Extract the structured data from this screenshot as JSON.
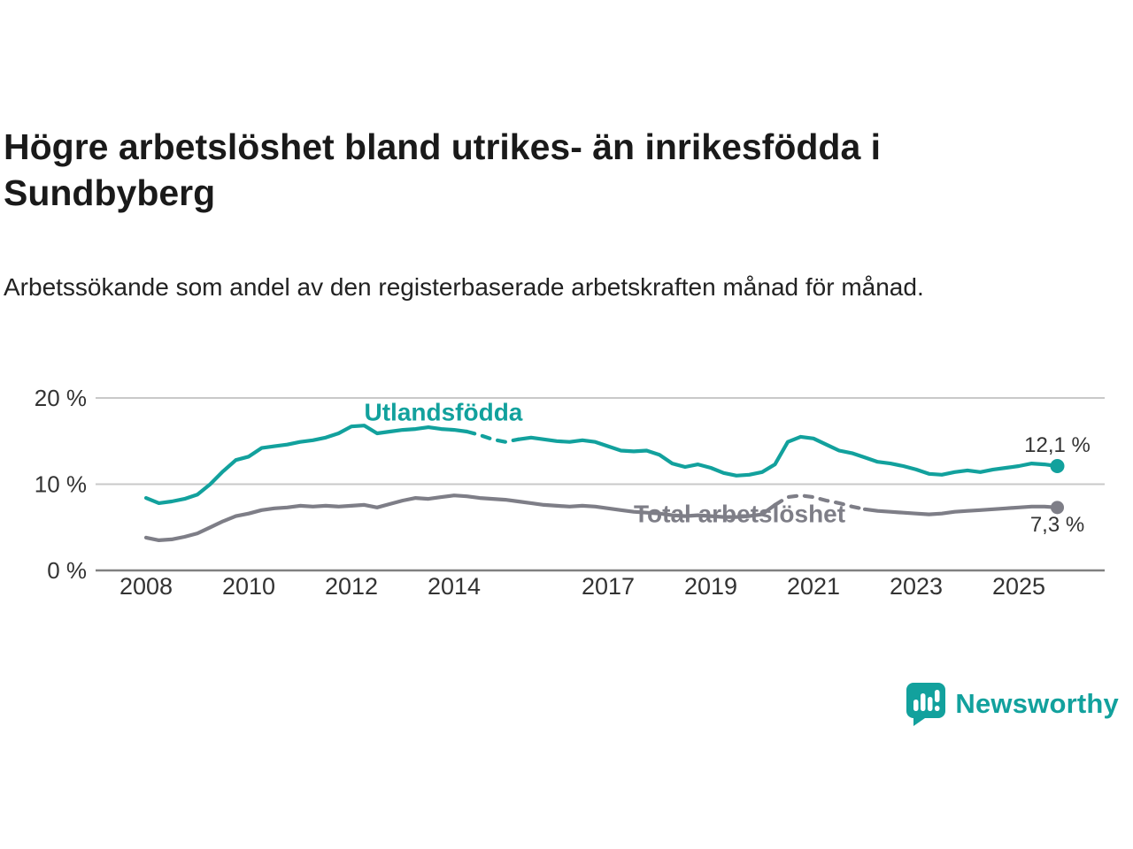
{
  "header": {
    "title": "Högre arbetslöshet bland utrikes- än inrikesfödda i Sundbyberg",
    "subtitle": "Arbetssökande som andel av den registerbaserade arbetskraften månad för månad."
  },
  "footer": {
    "brand": "Newsworthy"
  },
  "colors": {
    "teal": "#12A19D",
    "gray": "#7E7E87",
    "grid": "#C9C9C9",
    "axis": "#808080",
    "tick_text": "#333333",
    "value_label": "#333333"
  },
  "chart_data": {
    "type": "line",
    "title": "Högre arbetslöshet bland utrikes- än inrikesfödda i Sundbyberg",
    "subtitle": "Arbetssökande som andel av den registerbaserade arbetskraften månad för månad.",
    "xlabel": "",
    "ylabel": "",
    "ylim": [
      0,
      20
    ],
    "grid": "horizontal",
    "legend_position": "inline-labels",
    "yticks": [
      {
        "value": 0,
        "label": "0 %"
      },
      {
        "value": 10,
        "label": "10 %"
      },
      {
        "value": 20,
        "label": "20 %"
      }
    ],
    "xticks": [
      {
        "value": 2008,
        "label": "2008"
      },
      {
        "value": 2010,
        "label": "2010"
      },
      {
        "value": 2012,
        "label": "2012"
      },
      {
        "value": 2014,
        "label": "2014"
      },
      {
        "value": 2017,
        "label": "2017"
      },
      {
        "value": 2019,
        "label": "2019"
      },
      {
        "value": 2021,
        "label": "2021"
      },
      {
        "value": 2023,
        "label": "2023"
      },
      {
        "value": 2025,
        "label": "2025"
      }
    ],
    "series": [
      {
        "name": "Utlandsfödda",
        "color": "#12A19D",
        "end_label": "12,1 %",
        "end_value": 12.1,
        "end_label_dy": -16,
        "label_pos": {
          "x": 2012.25,
          "y": 17.4
        },
        "dash_ranges": [
          [
            2014.2,
            2015.05
          ]
        ],
        "points": [
          [
            2008.0,
            8.4
          ],
          [
            2008.25,
            7.8
          ],
          [
            2008.5,
            8.0
          ],
          [
            2008.75,
            8.3
          ],
          [
            2009.0,
            8.8
          ],
          [
            2009.25,
            10.0
          ],
          [
            2009.5,
            11.5
          ],
          [
            2009.75,
            12.8
          ],
          [
            2010.0,
            13.2
          ],
          [
            2010.25,
            14.2
          ],
          [
            2010.5,
            14.4
          ],
          [
            2010.75,
            14.6
          ],
          [
            2011.0,
            14.9
          ],
          [
            2011.25,
            15.1
          ],
          [
            2011.5,
            15.4
          ],
          [
            2011.75,
            15.9
          ],
          [
            2012.0,
            16.7
          ],
          [
            2012.25,
            16.8
          ],
          [
            2012.5,
            15.9
          ],
          [
            2012.75,
            16.1
          ],
          [
            2013.0,
            16.3
          ],
          [
            2013.25,
            16.4
          ],
          [
            2013.5,
            16.6
          ],
          [
            2013.75,
            16.4
          ],
          [
            2014.0,
            16.3
          ],
          [
            2014.25,
            16.1
          ],
          [
            2014.5,
            15.7
          ],
          [
            2014.75,
            15.2
          ],
          [
            2015.0,
            14.9
          ],
          [
            2015.25,
            15.2
          ],
          [
            2015.5,
            15.4
          ],
          [
            2015.75,
            15.2
          ],
          [
            2016.0,
            15.0
          ],
          [
            2016.25,
            14.9
          ],
          [
            2016.5,
            15.1
          ],
          [
            2016.75,
            14.9
          ],
          [
            2017.0,
            14.4
          ],
          [
            2017.25,
            13.9
          ],
          [
            2017.5,
            13.8
          ],
          [
            2017.75,
            13.9
          ],
          [
            2018.0,
            13.4
          ],
          [
            2018.25,
            12.4
          ],
          [
            2018.5,
            12.0
          ],
          [
            2018.75,
            12.3
          ],
          [
            2019.0,
            11.9
          ],
          [
            2019.25,
            11.3
          ],
          [
            2019.5,
            11.0
          ],
          [
            2019.75,
            11.1
          ],
          [
            2020.0,
            11.4
          ],
          [
            2020.25,
            12.3
          ],
          [
            2020.5,
            14.9
          ],
          [
            2020.75,
            15.5
          ],
          [
            2021.0,
            15.3
          ],
          [
            2021.25,
            14.6
          ],
          [
            2021.5,
            13.9
          ],
          [
            2021.75,
            13.6
          ],
          [
            2022.0,
            13.1
          ],
          [
            2022.25,
            12.6
          ],
          [
            2022.5,
            12.4
          ],
          [
            2022.75,
            12.1
          ],
          [
            2023.0,
            11.7
          ],
          [
            2023.25,
            11.2
          ],
          [
            2023.5,
            11.1
          ],
          [
            2023.75,
            11.4
          ],
          [
            2024.0,
            11.6
          ],
          [
            2024.25,
            11.4
          ],
          [
            2024.5,
            11.7
          ],
          [
            2024.75,
            11.9
          ],
          [
            2025.0,
            12.1
          ],
          [
            2025.25,
            12.4
          ],
          [
            2025.5,
            12.3
          ],
          [
            2025.75,
            12.1
          ]
        ]
      },
      {
        "name": "Total arbetslöshet",
        "color": "#7E7E87",
        "end_label": "7,3 %",
        "end_value": 7.3,
        "end_label_dy": 27,
        "label_pos": {
          "x": 2017.5,
          "y": 5.6
        },
        "dash_ranges": [
          [
            2020.15,
            2021.8
          ]
        ],
        "points": [
          [
            2008.0,
            3.8
          ],
          [
            2008.25,
            3.5
          ],
          [
            2008.5,
            3.6
          ],
          [
            2008.75,
            3.9
          ],
          [
            2009.0,
            4.3
          ],
          [
            2009.25,
            5.0
          ],
          [
            2009.5,
            5.7
          ],
          [
            2009.75,
            6.3
          ],
          [
            2010.0,
            6.6
          ],
          [
            2010.25,
            7.0
          ],
          [
            2010.5,
            7.2
          ],
          [
            2010.75,
            7.3
          ],
          [
            2011.0,
            7.5
          ],
          [
            2011.25,
            7.4
          ],
          [
            2011.5,
            7.5
          ],
          [
            2011.75,
            7.4
          ],
          [
            2012.0,
            7.5
          ],
          [
            2012.25,
            7.6
          ],
          [
            2012.5,
            7.3
          ],
          [
            2012.75,
            7.7
          ],
          [
            2013.0,
            8.1
          ],
          [
            2013.25,
            8.4
          ],
          [
            2013.5,
            8.3
          ],
          [
            2013.75,
            8.5
          ],
          [
            2014.0,
            8.7
          ],
          [
            2014.25,
            8.6
          ],
          [
            2014.5,
            8.4
          ],
          [
            2014.75,
            8.3
          ],
          [
            2015.0,
            8.2
          ],
          [
            2015.25,
            8.0
          ],
          [
            2015.5,
            7.8
          ],
          [
            2015.75,
            7.6
          ],
          [
            2016.0,
            7.5
          ],
          [
            2016.25,
            7.4
          ],
          [
            2016.5,
            7.5
          ],
          [
            2016.75,
            7.4
          ],
          [
            2017.0,
            7.2
          ],
          [
            2017.25,
            7.0
          ],
          [
            2017.5,
            6.8
          ],
          [
            2017.75,
            6.7
          ],
          [
            2018.0,
            6.6
          ],
          [
            2018.25,
            6.4
          ],
          [
            2018.5,
            6.3
          ],
          [
            2018.75,
            6.4
          ],
          [
            2019.0,
            6.3
          ],
          [
            2019.25,
            6.2
          ],
          [
            2019.5,
            6.2
          ],
          [
            2019.75,
            6.3
          ],
          [
            2020.0,
            6.5
          ],
          [
            2020.25,
            7.6
          ],
          [
            2020.5,
            8.5
          ],
          [
            2020.75,
            8.7
          ],
          [
            2021.0,
            8.5
          ],
          [
            2021.25,
            8.1
          ],
          [
            2021.5,
            7.8
          ],
          [
            2021.75,
            7.4
          ],
          [
            2022.0,
            7.1
          ],
          [
            2022.25,
            6.9
          ],
          [
            2022.5,
            6.8
          ],
          [
            2022.75,
            6.7
          ],
          [
            2023.0,
            6.6
          ],
          [
            2023.25,
            6.5
          ],
          [
            2023.5,
            6.6
          ],
          [
            2023.75,
            6.8
          ],
          [
            2024.0,
            6.9
          ],
          [
            2024.25,
            7.0
          ],
          [
            2024.5,
            7.1
          ],
          [
            2024.75,
            7.2
          ],
          [
            2025.0,
            7.3
          ],
          [
            2025.25,
            7.4
          ],
          [
            2025.5,
            7.4
          ],
          [
            2025.75,
            7.3
          ]
        ]
      }
    ]
  }
}
